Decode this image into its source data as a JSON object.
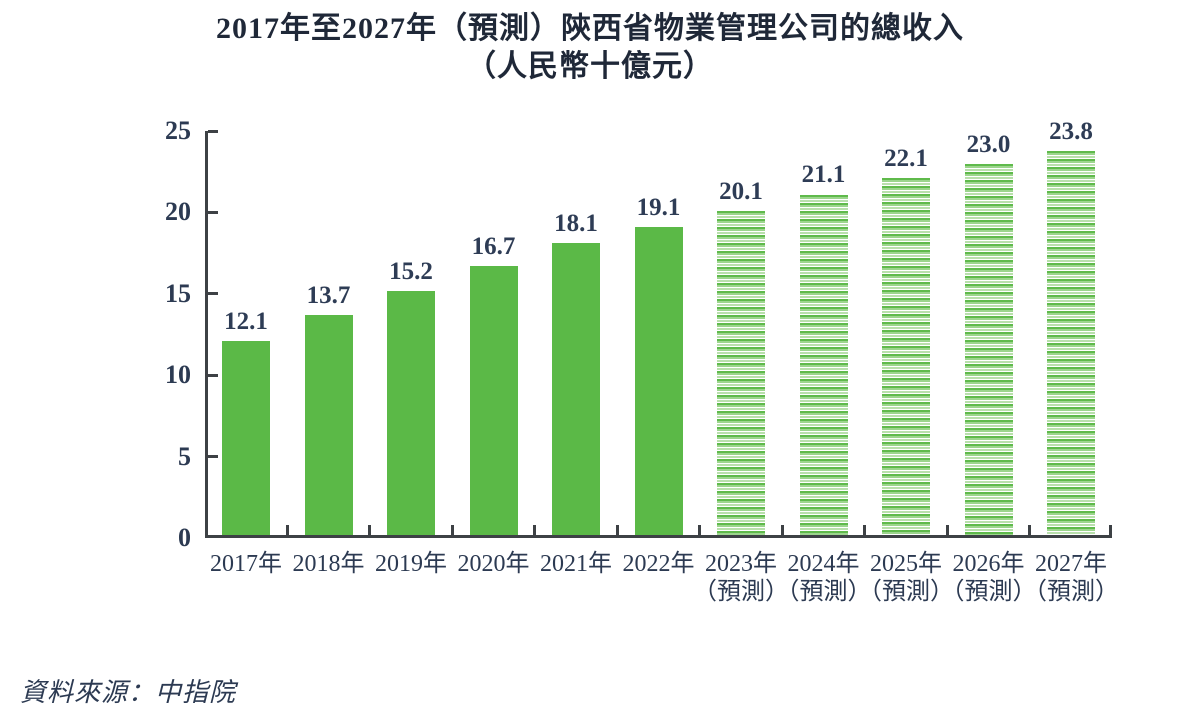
{
  "title": {
    "line1": "2017年至2027年（預測）陝西省物業管理公司的總收入",
    "line2": "（人民幣十億元）"
  },
  "source_note": "資料來源：中指院",
  "colors": {
    "bar_green": "#5bb947",
    "stripe_green_light": "#9cd58d",
    "axis": "#3d4145",
    "ink": "#2c3a52"
  },
  "chart_data": {
    "type": "bar",
    "title": "2017年至2027年（預測）陝西省物業管理公司的總收入（人民幣十億元）",
    "xlabel": "",
    "ylabel": "人民幣十億元",
    "ylim": [
      0,
      25
    ],
    "yticks": [
      0,
      5,
      10,
      15,
      20,
      25
    ],
    "grid": false,
    "legend": "none",
    "categories": [
      "2017年",
      "2018年",
      "2019年",
      "2020年",
      "2021年",
      "2022年",
      "2023年",
      "2024年",
      "2025年",
      "2026年",
      "2027年"
    ],
    "category_sublabels": [
      "",
      "",
      "",
      "",
      "",
      "",
      "（預測）",
      "（預測）",
      "（預測）",
      "（預測）",
      "（預測）"
    ],
    "values": [
      12.1,
      13.7,
      15.2,
      16.7,
      18.1,
      19.1,
      20.1,
      21.1,
      22.1,
      23.0,
      23.8
    ],
    "value_labels": [
      "12.1",
      "13.7",
      "15.2",
      "16.7",
      "18.1",
      "19.1",
      "20.1",
      "21.1",
      "22.1",
      "23.0",
      "23.8"
    ],
    "bar_styles": [
      "solid",
      "solid",
      "solid",
      "solid",
      "solid",
      "solid",
      "striped",
      "striped",
      "striped",
      "striped",
      "striped"
    ]
  }
}
